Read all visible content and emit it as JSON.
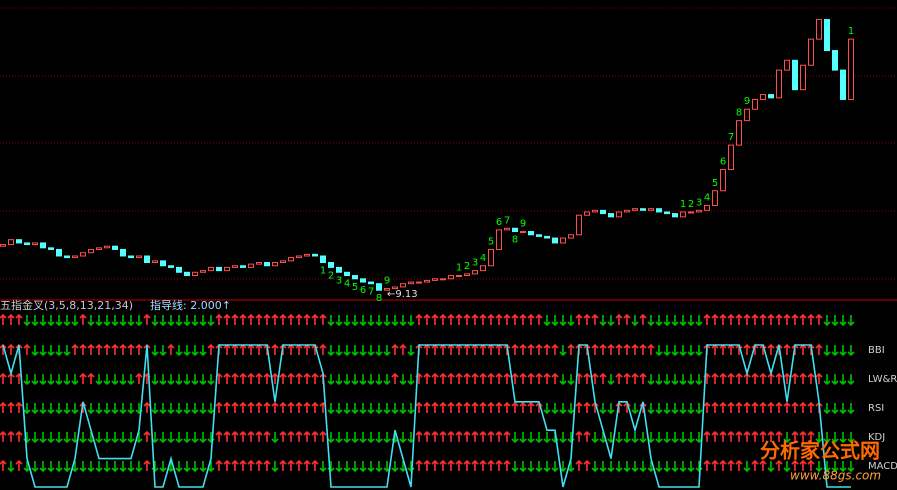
{
  "chart_data": [
    {
      "type": "candlestick",
      "open": [
        9.4,
        9.41,
        9.44,
        9.42,
        9.41,
        9.42,
        9.39,
        9.38,
        9.34,
        9.33,
        9.34,
        9.36,
        9.38,
        9.39,
        9.4,
        9.38,
        9.34,
        9.33,
        9.34,
        9.3,
        9.31,
        9.28,
        9.27,
        9.24,
        9.22,
        9.24,
        9.25,
        9.27,
        9.25,
        9.27,
        9.28,
        9.27,
        9.29,
        9.3,
        9.28,
        9.3,
        9.31,
        9.33,
        9.34,
        9.35,
        9.34,
        9.3,
        9.27,
        9.24,
        9.22,
        9.2,
        9.18,
        9.17,
        9.13,
        9.14,
        9.15,
        9.17,
        9.18,
        9.18,
        9.19,
        9.2,
        9.2,
        9.22,
        9.22,
        9.23,
        9.25,
        9.28,
        9.38,
        9.5,
        9.51,
        9.49,
        9.49,
        9.47,
        9.46,
        9.45,
        9.42,
        9.45,
        9.47,
        9.59,
        9.61,
        9.62,
        9.6,
        9.58,
        9.61,
        9.62,
        9.63,
        9.62,
        9.63,
        9.61,
        9.6,
        9.58,
        9.61,
        9.61,
        9.62,
        9.65,
        9.74,
        9.87,
        10.02,
        10.17,
        10.24,
        10.3,
        10.33,
        10.31,
        10.48,
        10.54,
        10.36,
        10.51,
        10.67,
        10.79,
        10.6,
        10.48,
        10.3
      ],
      "close": [
        9.41,
        9.44,
        9.42,
        9.41,
        9.42,
        9.39,
        9.38,
        9.34,
        9.33,
        9.34,
        9.36,
        9.38,
        9.39,
        9.4,
        9.38,
        9.34,
        9.33,
        9.34,
        9.3,
        9.31,
        9.28,
        9.27,
        9.24,
        9.22,
        9.24,
        9.25,
        9.27,
        9.25,
        9.27,
        9.28,
        9.27,
        9.29,
        9.3,
        9.28,
        9.3,
        9.31,
        9.33,
        9.34,
        9.35,
        9.34,
        9.3,
        9.27,
        9.24,
        9.22,
        9.2,
        9.18,
        9.17,
        9.13,
        9.14,
        9.15,
        9.17,
        9.18,
        9.18,
        9.19,
        9.2,
        9.2,
        9.22,
        9.22,
        9.23,
        9.25,
        9.28,
        9.38,
        9.5,
        9.51,
        9.49,
        9.49,
        9.47,
        9.46,
        9.45,
        9.42,
        9.45,
        9.47,
        9.59,
        9.61,
        9.62,
        9.6,
        9.58,
        9.61,
        9.62,
        9.63,
        9.62,
        9.63,
        9.61,
        9.6,
        9.58,
        9.61,
        9.61,
        9.62,
        9.65,
        9.74,
        9.87,
        10.02,
        10.17,
        10.24,
        10.3,
        10.33,
        10.31,
        10.48,
        10.54,
        10.36,
        10.51,
        10.67,
        10.79,
        10.6,
        10.48,
        10.3,
        10.67
      ],
      "count_labels": [
        null,
        null,
        null,
        null,
        null,
        null,
        null,
        null,
        null,
        null,
        null,
        null,
        null,
        null,
        null,
        null,
        null,
        null,
        null,
        null,
        null,
        null,
        null,
        null,
        null,
        null,
        null,
        null,
        null,
        null,
        null,
        null,
        null,
        null,
        null,
        null,
        null,
        null,
        null,
        null,
        "1",
        "2",
        "3",
        "4",
        "5",
        "6",
        "7",
        "8",
        "9",
        null,
        null,
        null,
        null,
        null,
        null,
        null,
        null,
        "1",
        "2",
        "3",
        "4",
        "5",
        "6",
        "7",
        "8",
        "9",
        null,
        null,
        null,
        null,
        null,
        null,
        null,
        null,
        null,
        null,
        null,
        null,
        null,
        null,
        null,
        null,
        null,
        null,
        null,
        "1",
        "2",
        "3",
        "4",
        "5",
        "6",
        "7",
        "8",
        "9",
        null,
        null,
        null,
        null,
        null,
        null,
        null,
        null,
        null,
        null,
        null,
        null,
        "1"
      ],
      "low_label": "←9.13",
      "up_color": "#ff5050",
      "down_color": "#54ffff",
      "count_color": "#00ff00",
      "ylim": [
        9.07,
        10.91
      ]
    },
    {
      "type": "signal",
      "title": "五指金叉(3,5,8,13,21,34)",
      "guide": "指导线: 2.000↑",
      "up_color": "#ff3030",
      "down_color": "#00c000",
      "rows": [
        {
          "values": [
            1,
            1,
            1,
            0,
            0,
            0,
            0,
            0,
            0,
            0,
            1,
            0,
            0,
            0,
            0,
            0,
            0,
            0,
            1,
            0,
            0,
            0,
            0,
            0,
            0,
            0,
            0,
            1,
            1,
            1,
            1,
            1,
            1,
            1,
            1,
            1,
            1,
            1,
            1,
            1,
            1,
            0,
            0,
            0,
            0,
            0,
            0,
            0,
            0,
            0,
            0,
            0,
            1,
            1,
            1,
            1,
            1,
            1,
            1,
            1,
            1,
            1,
            1,
            1,
            1,
            1,
            1,
            1,
            0,
            0,
            0,
            0,
            1,
            1,
            1,
            0,
            0,
            1,
            1,
            0,
            1,
            0,
            0,
            0,
            0,
            0,
            0,
            0,
            1,
            1,
            1,
            1,
            1,
            1,
            1,
            1,
            1,
            1,
            1,
            1,
            1,
            1,
            1,
            0,
            0,
            0,
            0
          ]
        },
        {
          "name": "BBI",
          "values": [
            1,
            1,
            1,
            1,
            0,
            0,
            0,
            0,
            0,
            1,
            1,
            1,
            1,
            1,
            1,
            1,
            1,
            1,
            1,
            0,
            0,
            1,
            0,
            0,
            0,
            0,
            1,
            1,
            1,
            1,
            1,
            1,
            1,
            1,
            1,
            1,
            1,
            1,
            1,
            1,
            1,
            0,
            0,
            0,
            0,
            0,
            0,
            0,
            0,
            1,
            1,
            0,
            1,
            1,
            1,
            1,
            1,
            1,
            1,
            1,
            1,
            1,
            1,
            1,
            1,
            1,
            1,
            1,
            1,
            1,
            0,
            1,
            1,
            1,
            1,
            1,
            1,
            1,
            1,
            1,
            1,
            1,
            0,
            0,
            0,
            0,
            0,
            0,
            1,
            1,
            1,
            1,
            1,
            1,
            1,
            1,
            1,
            1,
            1,
            1,
            1,
            1,
            1,
            0,
            0,
            0,
            0
          ]
        },
        {
          "name": "LW&R",
          "values": [
            1,
            1,
            1,
            0,
            0,
            0,
            0,
            0,
            0,
            0,
            1,
            1,
            0,
            0,
            0,
            0,
            0,
            1,
            1,
            0,
            0,
            0,
            0,
            0,
            0,
            0,
            0,
            1,
            1,
            1,
            1,
            1,
            1,
            1,
            1,
            1,
            1,
            1,
            1,
            1,
            1,
            0,
            0,
            0,
            0,
            0,
            0,
            0,
            0,
            1,
            0,
            0,
            1,
            1,
            1,
            1,
            1,
            1,
            1,
            1,
            1,
            1,
            1,
            1,
            1,
            1,
            1,
            1,
            1,
            1,
            0,
            0,
            1,
            1,
            1,
            1,
            0,
            1,
            1,
            1,
            1,
            0,
            0,
            0,
            0,
            0,
            0,
            0,
            1,
            1,
            1,
            1,
            1,
            1,
            1,
            1,
            1,
            1,
            1,
            1,
            1,
            1,
            1,
            0,
            0,
            0,
            0
          ]
        },
        {
          "name": "RSI",
          "values": [
            1,
            1,
            1,
            0,
            0,
            0,
            0,
            0,
            0,
            0,
            1,
            0,
            0,
            0,
            0,
            0,
            0,
            0,
            1,
            0,
            0,
            0,
            0,
            0,
            0,
            0,
            0,
            1,
            1,
            1,
            1,
            1,
            1,
            1,
            1,
            1,
            1,
            1,
            1,
            1,
            1,
            0,
            0,
            0,
            0,
            0,
            0,
            0,
            0,
            0,
            0,
            0,
            1,
            1,
            1,
            1,
            1,
            1,
            1,
            1,
            1,
            1,
            1,
            1,
            1,
            1,
            1,
            1,
            0,
            0,
            0,
            0,
            1,
            1,
            1,
            0,
            0,
            1,
            1,
            0,
            1,
            0,
            0,
            0,
            0,
            0,
            0,
            0,
            1,
            1,
            1,
            1,
            1,
            1,
            1,
            1,
            1,
            1,
            1,
            1,
            1,
            1,
            1,
            0,
            0,
            0,
            0
          ]
        },
        {
          "name": "KDJ",
          "values": [
            1,
            1,
            1,
            0,
            0,
            0,
            0,
            0,
            0,
            0,
            0,
            0,
            0,
            0,
            0,
            0,
            0,
            0,
            1,
            0,
            0,
            0,
            0,
            0,
            0,
            0,
            0,
            1,
            1,
            1,
            1,
            1,
            1,
            1,
            0,
            1,
            1,
            1,
            1,
            1,
            1,
            0,
            0,
            0,
            0,
            0,
            0,
            0,
            0,
            0,
            0,
            0,
            1,
            1,
            1,
            1,
            1,
            1,
            1,
            1,
            1,
            1,
            1,
            1,
            0,
            0,
            0,
            0,
            0,
            0,
            0,
            0,
            1,
            1,
            0,
            0,
            0,
            0,
            0,
            0,
            0,
            0,
            0,
            0,
            0,
            0,
            0,
            0,
            1,
            1,
            1,
            1,
            1,
            1,
            1,
            1,
            1,
            1,
            0,
            1,
            1,
            1,
            0,
            0,
            0,
            0,
            0
          ]
        },
        {
          "name": "MACD",
          "values": [
            1,
            0,
            1,
            0,
            0,
            0,
            0,
            0,
            0,
            0,
            0,
            0,
            0,
            0,
            0,
            0,
            0,
            0,
            1,
            0,
            0,
            0,
            0,
            0,
            0,
            0,
            0,
            1,
            1,
            1,
            1,
            1,
            1,
            1,
            0,
            1,
            1,
            1,
            1,
            1,
            0,
            0,
            0,
            0,
            0,
            0,
            0,
            0,
            0,
            0,
            0,
            0,
            1,
            1,
            1,
            1,
            1,
            1,
            1,
            1,
            1,
            1,
            1,
            1,
            0,
            0,
            0,
            0,
            0,
            0,
            0,
            0,
            1,
            1,
            0,
            0,
            0,
            0,
            0,
            0,
            0,
            0,
            0,
            0,
            0,
            0,
            0,
            0,
            1,
            1,
            1,
            1,
            1,
            0,
            1,
            1,
            0,
            1,
            0,
            1,
            1,
            1,
            0,
            0,
            0,
            0,
            0
          ]
        }
      ],
      "line": {
        "color": "#40e0f0",
        "ylim": [
          0,
          5
        ],
        "values": [
          5,
          4,
          5,
          1,
          0,
          0,
          0,
          0,
          0,
          1,
          3,
          2,
          1,
          1,
          1,
          1,
          1,
          2,
          5,
          0,
          0,
          1,
          0,
          0,
          0,
          0,
          1,
          5,
          5,
          5,
          5,
          5,
          5,
          5,
          3,
          5,
          5,
          5,
          5,
          5,
          4,
          0,
          0,
          0,
          0,
          0,
          0,
          0,
          0,
          2,
          1,
          0,
          5,
          5,
          5,
          5,
          5,
          5,
          5,
          5,
          5,
          5,
          5,
          5,
          3,
          3,
          3,
          3,
          2,
          2,
          0,
          1,
          5,
          5,
          3,
          2,
          1,
          3,
          3,
          2,
          3,
          1,
          0,
          0,
          0,
          0,
          0,
          0,
          5,
          5,
          5,
          5,
          5,
          4,
          5,
          5,
          4,
          5,
          3,
          5,
          5,
          5,
          3,
          0,
          0,
          0,
          0
        ]
      }
    }
  ],
  "watermark": {
    "name": "分析家公式网",
    "url": "www.88gs.com"
  }
}
